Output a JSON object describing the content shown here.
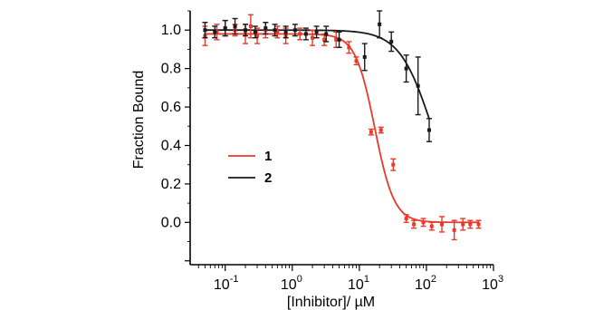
{
  "chart_data": {
    "type": "scatter",
    "title": "",
    "xlabel": "[Inhibitor]/ µM",
    "ylabel": "Fraction Bound",
    "xscale": "log",
    "xlim": [
      0.03,
      1000
    ],
    "ylim": [
      -0.22,
      1.1
    ],
    "x_ticks": [
      {
        "base": "10",
        "exp": "-1",
        "value": 0.1
      },
      {
        "base": "10",
        "exp": "0",
        "value": 1
      },
      {
        "base": "10",
        "exp": "1",
        "value": 10
      },
      {
        "base": "10",
        "exp": "2",
        "value": 100
      },
      {
        "base": "10",
        "exp": "3",
        "value": 1000
      }
    ],
    "y_ticks": [
      {
        "label": "0.0",
        "value": 0.0
      },
      {
        "label": "0.2",
        "value": 0.2
      },
      {
        "label": "0.4",
        "value": 0.4
      },
      {
        "label": "0.6",
        "value": 0.6
      },
      {
        "label": "0.8",
        "value": 0.8
      },
      {
        "label": "1.0",
        "value": 1.0
      }
    ],
    "legend": {
      "placement": "center-left"
    },
    "grid": false,
    "series": [
      {
        "name": "1",
        "color": "#e8392a",
        "fit": {
          "top": 0.98,
          "bottom": 0.0,
          "ic50": 17,
          "hill": 3
        },
        "points": [
          {
            "x": 0.05,
            "y": 0.97,
            "err": 0.05
          },
          {
            "x": 0.075,
            "y": 0.99,
            "err": 0.04
          },
          {
            "x": 0.1,
            "y": 1.01,
            "err": 0.04
          },
          {
            "x": 0.14,
            "y": 1.0,
            "err": 0.03
          },
          {
            "x": 0.2,
            "y": 0.98,
            "err": 0.05
          },
          {
            "x": 0.24,
            "y": 1.02,
            "err": 0.06
          },
          {
            "x": 0.3,
            "y": 0.97,
            "err": 0.04
          },
          {
            "x": 0.4,
            "y": 1.0,
            "err": 0.04
          },
          {
            "x": 0.6,
            "y": 0.99,
            "err": 0.03
          },
          {
            "x": 0.8,
            "y": 0.97,
            "err": 0.04
          },
          {
            "x": 1.3,
            "y": 0.98,
            "err": 0.03
          },
          {
            "x": 2.0,
            "y": 0.96,
            "err": 0.04
          },
          {
            "x": 3.0,
            "y": 0.95,
            "err": 0.03
          },
          {
            "x": 4.5,
            "y": 0.95,
            "err": 0.04
          },
          {
            "x": 7.0,
            "y": 0.91,
            "err": 0.03
          },
          {
            "x": 9.0,
            "y": 0.84,
            "err": 0.02
          },
          {
            "x": 15,
            "y": 0.47,
            "err": 0.015
          },
          {
            "x": 21,
            "y": 0.48,
            "err": 0.015
          },
          {
            "x": 32,
            "y": 0.3,
            "err": 0.03
          },
          {
            "x": 50,
            "y": 0.02,
            "err": 0.02
          },
          {
            "x": 65,
            "y": -0.01,
            "err": 0.02
          },
          {
            "x": 90,
            "y": 0.0,
            "err": 0.02
          },
          {
            "x": 120,
            "y": -0.02,
            "err": 0.02
          },
          {
            "x": 170,
            "y": -0.01,
            "err": 0.04
          },
          {
            "x": 260,
            "y": -0.04,
            "err": 0.05
          },
          {
            "x": 350,
            "y": -0.01,
            "err": 0.03
          },
          {
            "x": 450,
            "y": -0.01,
            "err": 0.02
          },
          {
            "x": 600,
            "y": -0.01,
            "err": 0.02
          }
        ]
      },
      {
        "name": "2",
        "color": "#1a1a1a",
        "fit": {
          "top": 1.0,
          "bottom": 0.0,
          "ic50": 120,
          "hill": 1.8
        },
        "points": [
          {
            "x": 0.05,
            "y": 1.0,
            "err": 0.04
          },
          {
            "x": 0.07,
            "y": 0.99,
            "err": 0.03
          },
          {
            "x": 0.1,
            "y": 1.01,
            "err": 0.04
          },
          {
            "x": 0.14,
            "y": 1.02,
            "err": 0.04
          },
          {
            "x": 0.2,
            "y": 1.0,
            "err": 0.03
          },
          {
            "x": 0.28,
            "y": 0.99,
            "err": 0.03
          },
          {
            "x": 0.4,
            "y": 1.01,
            "err": 0.03
          },
          {
            "x": 0.55,
            "y": 1.0,
            "err": 0.03
          },
          {
            "x": 0.8,
            "y": 0.99,
            "err": 0.03
          },
          {
            "x": 1.1,
            "y": 1.0,
            "err": 0.03
          },
          {
            "x": 1.6,
            "y": 0.98,
            "err": 0.03
          },
          {
            "x": 2.3,
            "y": 0.99,
            "err": 0.03
          },
          {
            "x": 3.2,
            "y": 0.98,
            "err": 0.04
          },
          {
            "x": 5.0,
            "y": 0.95,
            "err": 0.04
          },
          {
            "x": 12,
            "y": 0.86,
            "err": 0.07
          },
          {
            "x": 20,
            "y": 1.03,
            "err": 0.07
          },
          {
            "x": 30,
            "y": 0.94,
            "err": 0.05
          },
          {
            "x": 50,
            "y": 0.8,
            "err": 0.07
          },
          {
            "x": 75,
            "y": 0.71,
            "err": 0.15
          },
          {
            "x": 110,
            "y": 0.48,
            "err": 0.06
          }
        ]
      }
    ]
  }
}
